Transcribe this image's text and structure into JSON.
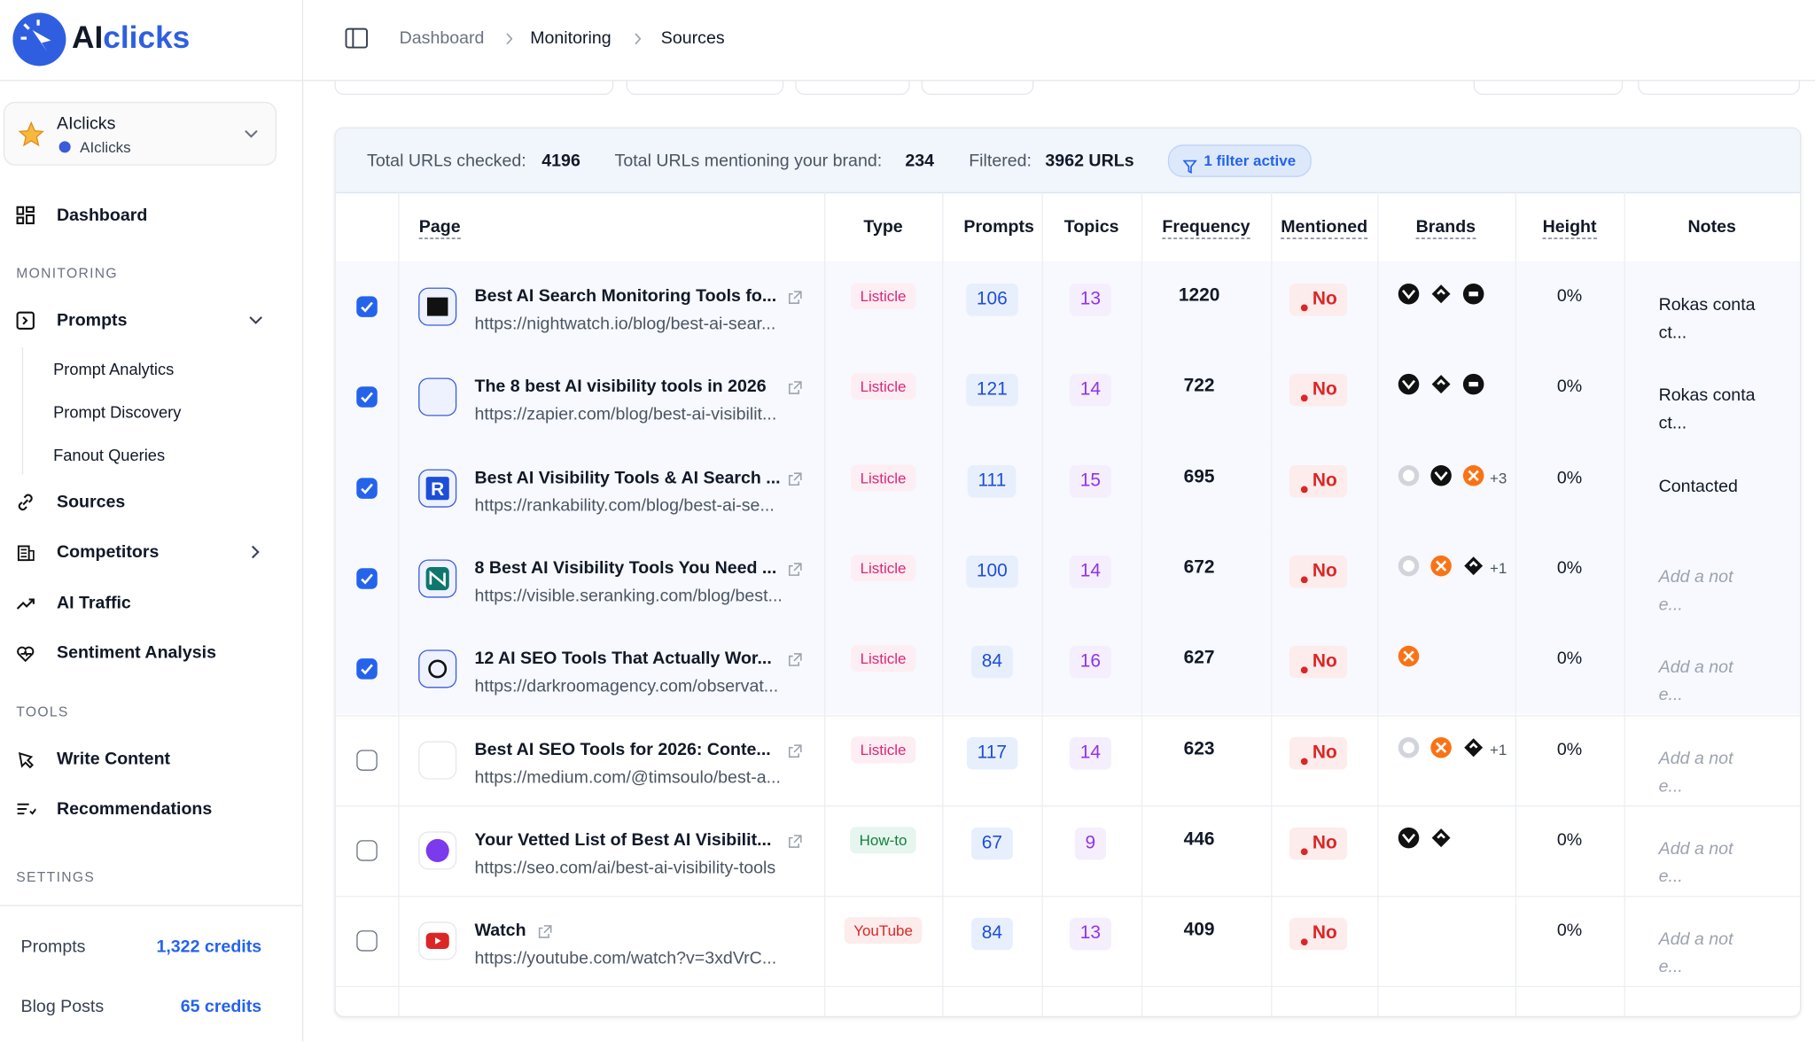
{
  "sidebar": {
    "brand": [
      "AI",
      "clicks"
    ],
    "workspace": {
      "name": "AIclicks",
      "sub": "AIclicks"
    },
    "items": [
      {
        "label": "Dashboard",
        "y": 0
      }
    ],
    "dashboard": "Dashboard",
    "monitoring": "MONITORING",
    "prompts": "Prompts",
    "prompt_sub": [
      "Prompt Analytics",
      "Prompt Discovery",
      "Fanout Queries"
    ],
    "monitoring_items": [
      "Sources",
      "Competitors",
      "AI Traffic",
      "Sentiment Analysis"
    ],
    "tools": "TOOLS",
    "tools_items": [
      "Write Content",
      "Recommendations"
    ],
    "settings": "SETTINGS",
    "credits": [
      {
        "label": "Prompts",
        "value": "1,322 credits"
      },
      {
        "label": "Blog Posts",
        "value": "65 credits"
      }
    ]
  },
  "breadcrumbs": [
    "Dashboard",
    "Monitoring",
    "Sources"
  ],
  "stats": [
    {
      "label": "Total URLs checked:",
      "value": 4196
    },
    {
      "label": "Total URLs mentioning your brand:",
      "value": 234
    },
    {
      "label": "Filtered:",
      "value": "3962 URLs"
    }
  ],
  "filter_badge": "1 filter active",
  "table": {
    "columns": [
      "Page",
      "Type",
      "Prompts",
      "Topics",
      "Frequency",
      "Mentioned",
      "Brands",
      "Height",
      "Notes"
    ],
    "rows": [
      {
        "checked": true,
        "title": "Best AI Search Monitoring Tools fo...",
        "url": "https://nightwatch.io/blog/best-ai-sear...",
        "type": "Listicle",
        "prompts": 106,
        "topics": 13,
        "frequency": 1220,
        "mentioned": "No",
        "brands_more": null,
        "height": "0%",
        "notes": "Rokas contact..."
      },
      {
        "checked": true,
        "title": "The 8 best AI visibility tools in 2026",
        "url": "https://zapier.com/blog/best-ai-visibilit...",
        "type": "Listicle",
        "prompts": 121,
        "topics": 14,
        "frequency": 722,
        "mentioned": "No",
        "brands_more": null,
        "height": "0%",
        "notes": "Rokas contact..."
      },
      {
        "checked": true,
        "title": "Best AI Visibility Tools & AI Search ...",
        "url": "https://rankability.com/blog/best-ai-se...",
        "type": "Listicle",
        "prompts": 111,
        "topics": 15,
        "frequency": 695,
        "mentioned": "No",
        "brands_more": "+3",
        "height": "0%",
        "notes": "Contacted"
      },
      {
        "checked": true,
        "title": "8 Best AI Visibility Tools You Need ...",
        "url": "https://visible.seranking.com/blog/best...",
        "type": "Listicle",
        "prompts": 100,
        "topics": 14,
        "frequency": 672,
        "mentioned": "No",
        "brands_more": "+1",
        "height": "0%",
        "notes": "Add a note..."
      },
      {
        "checked": true,
        "title": "12 AI SEO Tools That Actually Wor...",
        "url": "https://darkroomagency.com/observat...",
        "type": "Listicle",
        "prompts": 84,
        "topics": 16,
        "frequency": 627,
        "mentioned": "No",
        "brands_more": null,
        "height": "0%",
        "notes": "Add a note..."
      },
      {
        "checked": false,
        "title": "Best AI SEO Tools for 2026: Conte...",
        "url": "https://medium.com/@timsoulo/best-a...",
        "type": "Listicle",
        "prompts": 117,
        "topics": 14,
        "frequency": 623,
        "mentioned": "No",
        "brands_more": "+1",
        "height": "0%",
        "notes": "Add a note..."
      },
      {
        "checked": false,
        "title": "Your Vetted List of Best AI Visibilit...",
        "url": "https://seo.com/ai/best-ai-visibility-tools",
        "type": "How-to",
        "prompts": 67,
        "topics": 9,
        "frequency": 446,
        "mentioned": "No",
        "brands_more": null,
        "height": "0%",
        "notes": "Add a note..."
      },
      {
        "checked": false,
        "title": "Watch",
        "url": "https://youtube.com/watch?v=3xdVrC...",
        "type": "YouTube",
        "prompts": 84,
        "topics": 13,
        "frequency": 409,
        "mentioned": "No",
        "brands_more": null,
        "height": "0%",
        "notes": "Add a note..."
      }
    ]
  }
}
